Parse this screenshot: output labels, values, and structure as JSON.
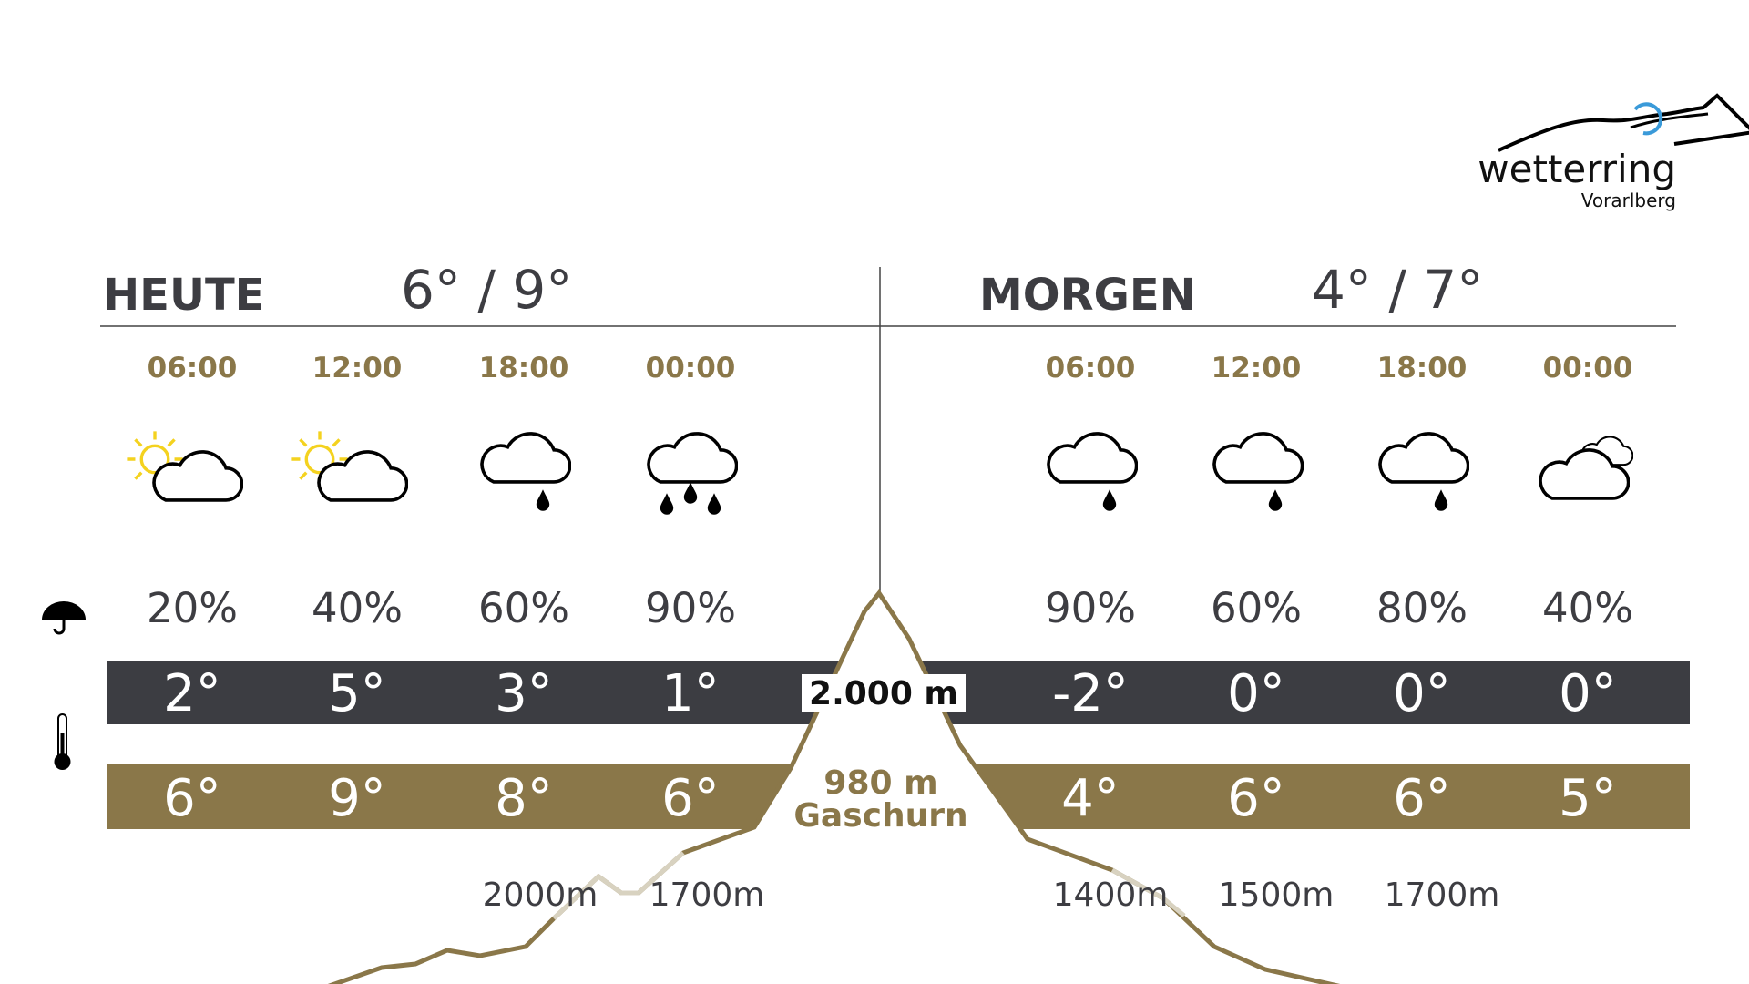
{
  "logo": {
    "name": "wetterring",
    "region": "Vorarlberg"
  },
  "mountain": {
    "summit": "2.000 m",
    "valley_altitude": "980 m",
    "valley_place": "Gaschurn"
  },
  "days": [
    {
      "label": "HEUTE",
      "range": "6° / 9°",
      "times": [
        "06:00",
        "12:00",
        "18:00",
        "00:00"
      ],
      "precip": [
        "20%",
        "40%",
        "60%",
        "90%"
      ],
      "mountain_temps": [
        "2°",
        "5°",
        "3°",
        "1°"
      ],
      "valley_temps": [
        "6°",
        "9°",
        "8°",
        "6°"
      ],
      "snowlines": [
        null,
        null,
        "2000m",
        "1700m"
      ]
    },
    {
      "label": "MORGEN",
      "range": "4° / 7°",
      "times": [
        "06:00",
        "12:00",
        "18:00",
        "00:00"
      ],
      "precip": [
        "90%",
        "60%",
        "80%",
        "40%"
      ],
      "mountain_temps": [
        "-2°",
        "0°",
        "0°",
        "0°"
      ],
      "valley_temps": [
        "4°",
        "6°",
        "6°",
        "5°"
      ],
      "snowlines": [
        "1400m",
        "1500m",
        "1700m",
        null
      ]
    }
  ]
}
